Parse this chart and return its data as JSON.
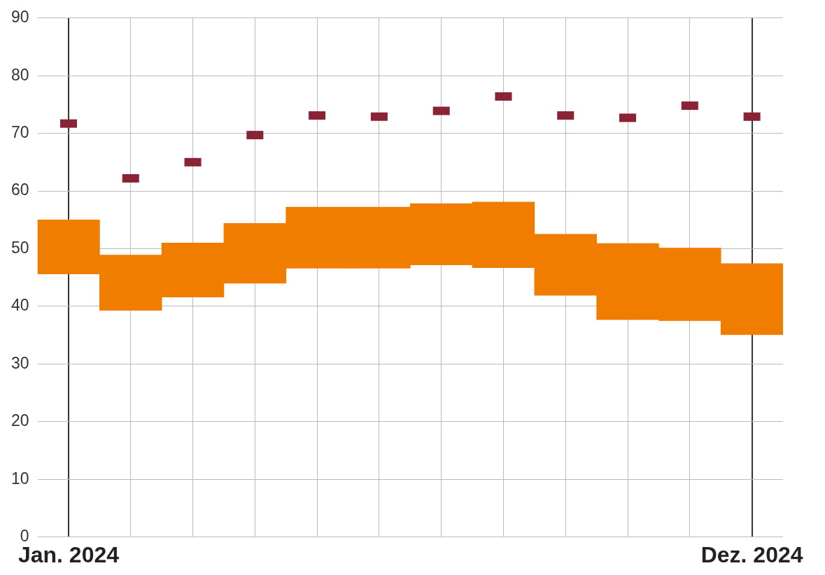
{
  "chart_data": {
    "type": "bar",
    "categories": [
      "Jan. 2024",
      null,
      null,
      null,
      null,
      null,
      null,
      null,
      null,
      null,
      null,
      "Dez. 2024"
    ],
    "series": [
      {
        "type": "bar",
        "color": "#f07d00",
        "base": [
          45.6,
          39.3,
          41.6,
          44.0,
          46.6,
          46.6,
          47.2,
          46.7,
          41.9,
          37.7,
          37.5,
          35.1
        ],
        "values": [
          9.4,
          9.6,
          9.4,
          10.4,
          10.6,
          10.6,
          10.6,
          11.4,
          10.6,
          13.2,
          12.6,
          12.3
        ]
      },
      {
        "type": "scatter",
        "color": "#8b2337",
        "values": [
          71.7,
          62.2,
          65.0,
          69.7,
          73.1,
          72.9,
          73.9,
          76.4,
          73.1,
          72.7,
          74.8,
          72.9
        ]
      }
    ],
    "ylim": [
      0,
      90
    ],
    "yticks": [
      0,
      10,
      20,
      30,
      40,
      50,
      60,
      70,
      80,
      90
    ],
    "grid": true,
    "legend": false
  }
}
